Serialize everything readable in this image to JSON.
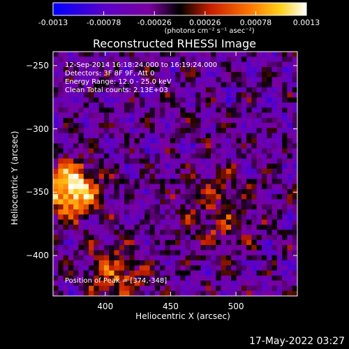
{
  "colorbar": {
    "tick_labels": [
      "-0.0013",
      "-0.00078",
      "-0.00026",
      "0.00026",
      "0.00078",
      "0.0013"
    ],
    "tick_values": [
      -0.0013,
      -0.00078,
      -0.00026,
      0.00026,
      0.00078,
      0.0013
    ],
    "units_label": "(photons cm⁻² s⁻¹ asec⁻²)",
    "colormap": [
      "#0000ff",
      "#5a00c8",
      "#7a00a0",
      "#000000",
      "#c81e00",
      "#ff7800",
      "#ffd21e",
      "#ffffff"
    ]
  },
  "chart_data": {
    "type": "heatmap",
    "title": "Reconstructed RHESSI Image",
    "xlabel": "Heliocentric X (arcsec)",
    "ylabel": "Heliocentric Y (arcsec)",
    "xlim": [
      360,
      547
    ],
    "ylim": [
      -432,
      -239
    ],
    "x_ticks": [
      400,
      450,
      500
    ],
    "y_ticks": [
      -250,
      -300,
      -350,
      -400
    ],
    "peak_position": [
      374,
      -348
    ],
    "total_counts": "2.13E+03",
    "info_lines": [
      "12-Sep-2014 16:18:24.000 to 16:19:24.000",
      "Detectors: 3F 8F 9F, Att 0",
      "Energy Range: 12.0 - 25.0 keV",
      "Clean     Total counts: 2.13E+03"
    ],
    "peak_label": "Position of Peak = [374,-348]"
  },
  "timestamp": "17-May-2022 03:27"
}
